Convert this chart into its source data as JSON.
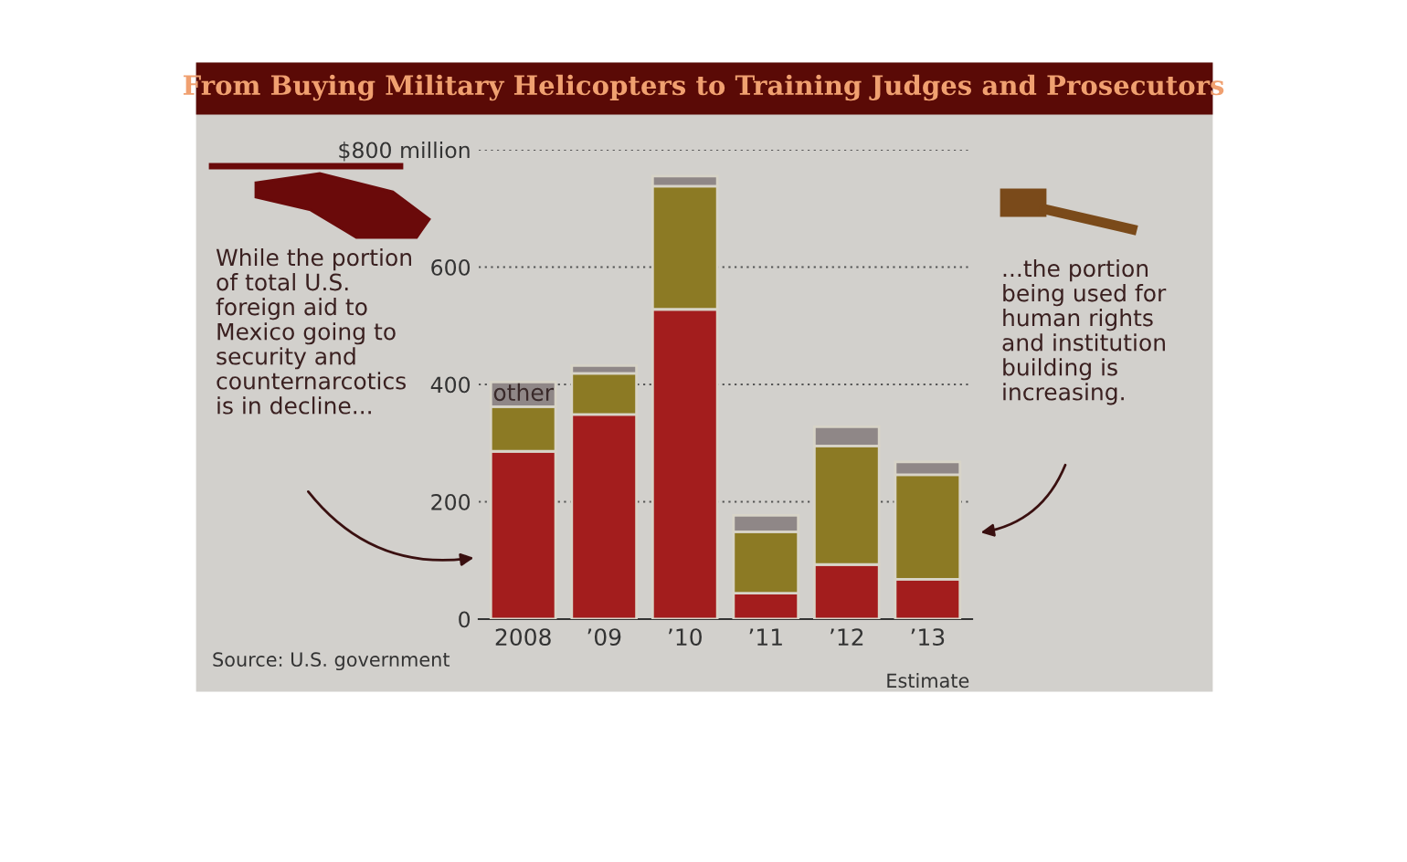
{
  "chart_data": {
    "type": "bar",
    "title": "From Buying Military Helicopters to Training Judges and Prosecutors",
    "categories": [
      "2008",
      "’09",
      "’10",
      "’11",
      "’12",
      "’13"
    ],
    "stacked": true,
    "series": [
      {
        "color": "#a31d1d",
        "values": [
          286,
          349,
          528,
          44,
          93,
          68
        ]
      },
      {
        "color": "#8c7a24",
        "values": [
          76,
          70,
          210,
          105,
          202,
          178
        ]
      },
      {
        "name": "other",
        "color": "#8f8787",
        "values": [
          42,
          13,
          17,
          28,
          33,
          22
        ]
      }
    ],
    "ylim": [
      0,
      800
    ],
    "yticks": [
      0,
      200,
      400,
      600,
      {
        "value": 800,
        "label": "$800 million"
      }
    ],
    "grid": "y",
    "legend": false,
    "annotations": [
      "While the portion of total U.S. foreign aid to Mexico going to security and counternarcotics is in decline...",
      "...the portion being used for human rights and institution building is increasing.",
      "Estimate",
      "Source: U.S. government"
    ]
  }
}
